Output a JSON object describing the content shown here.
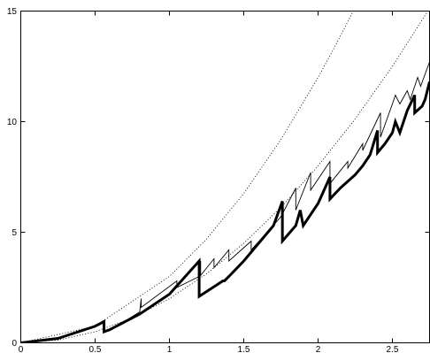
{
  "chart_data": {
    "type": "line",
    "title": "",
    "xlabel": "",
    "ylabel": "",
    "xlim": [
      0,
      2.75
    ],
    "ylim": [
      0,
      15
    ],
    "grid": false,
    "x_ticks": [
      0,
      0.5,
      1,
      1.5,
      2,
      2.5
    ],
    "x_tick_labels": [
      "0",
      "0.5",
      "1",
      "1.5",
      "2",
      "2.5"
    ],
    "y_ticks": [
      0,
      5,
      10,
      15
    ],
    "y_tick_labels": [
      "0",
      "5",
      "10",
      "15"
    ],
    "series": [
      {
        "style": "dotted",
        "points": [
          [
            0,
            0
          ],
          [
            0.25,
            0.125
          ],
          [
            0.5,
            0.5
          ],
          [
            0.75,
            1.125
          ],
          [
            1,
            2
          ],
          [
            1.25,
            3.125
          ],
          [
            1.5,
            4.5
          ],
          [
            1.75,
            6.125
          ],
          [
            2,
            8
          ],
          [
            2.25,
            10.125
          ],
          [
            2.5,
            12.5
          ],
          [
            2.75,
            15.125
          ]
        ]
      },
      {
        "style": "dotted",
        "points": [
          [
            0,
            0
          ],
          [
            0.5,
            0.75
          ],
          [
            1,
            3
          ],
          [
            1.25,
            4.69
          ],
          [
            1.5,
            6.75
          ],
          [
            1.75,
            9.19
          ],
          [
            2,
            12
          ],
          [
            2.1,
            13.23
          ],
          [
            2.2,
            14.52
          ],
          [
            2.26,
            15.32
          ]
        ]
      },
      {
        "style": "thin",
        "points": [
          [
            0,
            0
          ],
          [
            0.25,
            0.19
          ],
          [
            0.5,
            0.77
          ],
          [
            0.56,
            0.96
          ],
          [
            0.56,
            0.5
          ],
          [
            0.6,
            0.55
          ],
          [
            0.8,
            1.4
          ],
          [
            0.81,
            2.0
          ],
          [
            0.81,
            1.6
          ],
          [
            1.05,
            2.8
          ],
          [
            1.05,
            2.5
          ],
          [
            1.2,
            3.0
          ],
          [
            1.21,
            3.7
          ],
          [
            1.21,
            3.05
          ],
          [
            1.3,
            3.8
          ],
          [
            1.3,
            3.4
          ],
          [
            1.4,
            4.2
          ],
          [
            1.4,
            3.7
          ],
          [
            1.5,
            4.3
          ],
          [
            1.55,
            4.6
          ],
          [
            1.55,
            4.2
          ],
          [
            1.75,
            5.7
          ],
          [
            1.85,
            7.0
          ],
          [
            1.85,
            6.0
          ],
          [
            1.95,
            7.7
          ],
          [
            1.95,
            6.9
          ],
          [
            2.08,
            8.2
          ],
          [
            2.08,
            7.2
          ],
          [
            2.2,
            8.2
          ],
          [
            2.2,
            7.9
          ],
          [
            2.3,
            9.0
          ],
          [
            2.3,
            8.7
          ],
          [
            2.42,
            10.4
          ],
          [
            2.42,
            9.3
          ],
          [
            2.5,
            10.8
          ],
          [
            2.52,
            11.2
          ],
          [
            2.55,
            10.8
          ],
          [
            2.6,
            11.4
          ],
          [
            2.62,
            11.0
          ],
          [
            2.67,
            12.0
          ],
          [
            2.69,
            11.6
          ],
          [
            2.75,
            12.7
          ]
        ]
      },
      {
        "style": "thick",
        "points": [
          [
            0,
            0
          ],
          [
            0.25,
            0.2
          ],
          [
            0.5,
            0.75
          ],
          [
            0.56,
            0.96
          ],
          [
            0.56,
            0.5
          ],
          [
            0.6,
            0.6
          ],
          [
            0.8,
            1.3
          ],
          [
            1.0,
            2.2
          ],
          [
            1.2,
            3.7
          ],
          [
            1.2,
            2.1
          ],
          [
            1.36,
            2.8
          ],
          [
            1.37,
            2.8
          ],
          [
            1.4,
            3.0
          ],
          [
            1.5,
            3.7
          ],
          [
            1.6,
            4.5
          ],
          [
            1.7,
            5.3
          ],
          [
            1.76,
            6.4
          ],
          [
            1.76,
            4.6
          ],
          [
            1.85,
            5.3
          ],
          [
            1.88,
            6.0
          ],
          [
            1.9,
            5.3
          ],
          [
            2.0,
            6.3
          ],
          [
            2.08,
            7.5
          ],
          [
            2.08,
            6.5
          ],
          [
            2.15,
            7.0
          ],
          [
            2.2,
            7.3
          ],
          [
            2.25,
            7.6
          ],
          [
            2.3,
            8.0
          ],
          [
            2.35,
            8.5
          ],
          [
            2.4,
            9.6
          ],
          [
            2.4,
            8.6
          ],
          [
            2.45,
            9.0
          ],
          [
            2.5,
            9.5
          ],
          [
            2.52,
            10.0
          ],
          [
            2.55,
            9.5
          ],
          [
            2.6,
            10.5
          ],
          [
            2.65,
            11.2
          ],
          [
            2.65,
            10.4
          ],
          [
            2.7,
            10.7
          ],
          [
            2.72,
            11.0
          ],
          [
            2.75,
            11.8
          ]
        ]
      }
    ]
  }
}
